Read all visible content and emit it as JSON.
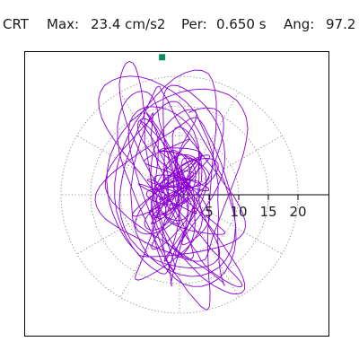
{
  "header": {
    "mode": "CRT",
    "max_label": "Max:",
    "max_value": "23.4 cm/s2",
    "per_label": "Per:",
    "per_value": "0.650 s",
    "ang_label": "Ang:",
    "ang_value": "97.2"
  },
  "chart_data": {
    "type": "scatter",
    "title": "",
    "xlabel": "",
    "ylabel": "",
    "radial_ticks": [
      "5",
      "10",
      "15",
      "20"
    ],
    "radial_values": [
      5,
      10,
      15,
      20
    ],
    "rmax": 25,
    "grid": true,
    "orbit_color": "#8a00d4",
    "marker_color": "#0a8f5a",
    "marker_angle_deg": 97.2,
    "marker_radius": 23.4
  }
}
